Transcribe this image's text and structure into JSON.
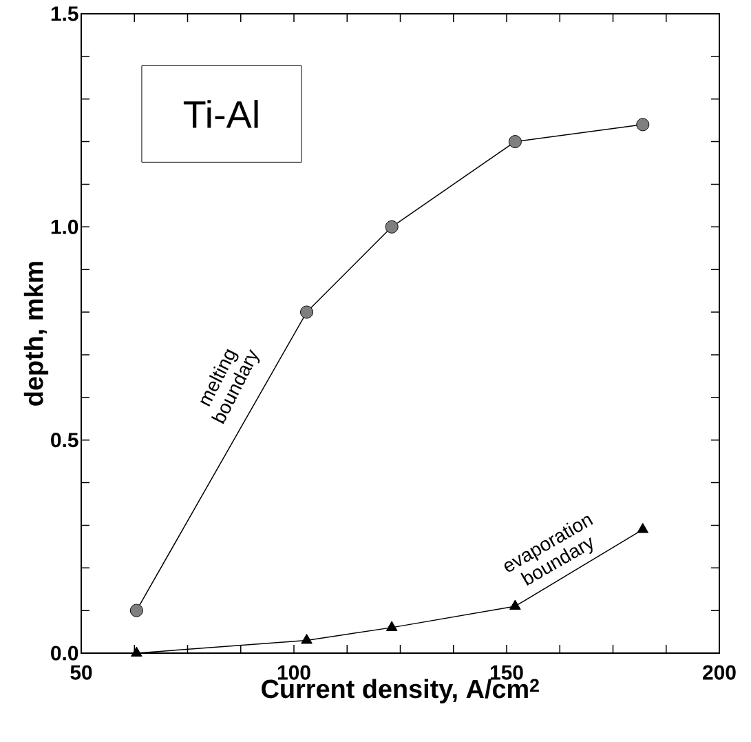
{
  "chart_data": {
    "type": "line",
    "xlabel": "Current density, A/cm$^{2}$",
    "ylabel": "depth, mkm",
    "x": [
      63,
      103,
      123,
      152,
      182
    ],
    "series": [
      {
        "color": "#7f7f7f",
        "marker": "circle",
        "values": [
          0.1,
          0.8,
          1.0,
          1.2,
          1.24
        ]
      },
      {
        "color": "#000000",
        "marker": "triangle",
        "values": [
          0.0,
          0.03,
          0.06,
          0.11,
          0.29
        ]
      }
    ],
    "xlim": [
      50,
      200
    ],
    "ylim": [
      0,
      1.5
    ],
    "xticks": [
      50,
      {
        "value": 62.5,
        "label": null
      },
      {
        "value": 75,
        "label": null
      },
      {
        "value": 87.5,
        "label": null
      },
      100,
      {
        "value": 112.5,
        "label": null
      },
      {
        "value": 125,
        "label": null
      },
      {
        "value": 137.5,
        "label": null
      },
      150,
      {
        "value": 162.5,
        "label": null
      },
      {
        "value": 175,
        "label": null
      },
      {
        "value": 187.5,
        "label": null
      },
      200
    ],
    "yticks": [
      {
        "value": 0,
        "label": "0.0"
      },
      {
        "value": 0.1,
        "label": null
      },
      {
        "value": 0.2,
        "label": null
      },
      {
        "value": 0.3,
        "label": null
      },
      {
        "value": 0.4,
        "label": null
      },
      {
        "value": 0.5,
        "label": "0.5"
      },
      {
        "value": 0.6,
        "label": null
      },
      {
        "value": 0.7,
        "label": null
      },
      {
        "value": 0.8,
        "label": null
      },
      {
        "value": 0.9,
        "label": null
      },
      {
        "value": 1.0,
        "label": "1.0"
      },
      {
        "value": 1.1,
        "label": null
      },
      {
        "value": 1.2,
        "label": null
      },
      {
        "value": 1.3,
        "label": null
      },
      {
        "value": 1.4,
        "label": null
      },
      {
        "value": 1.5,
        "label": "1.5"
      }
    ],
    "annotations": [
      "Ti-Al",
      "melting boundary",
      "evaporation boundary"
    ],
    "grid": false,
    "line_style": "solid"
  }
}
